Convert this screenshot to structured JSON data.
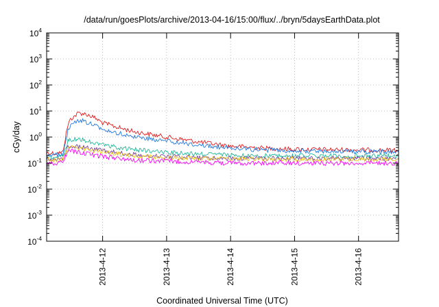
{
  "chart_data": {
    "type": "line",
    "title": "/data/run/goesPlots/archive/2013-04-16/15:00/flux/../bryn/5daysEarthData.plot",
    "xlabel": "Coordinated Universal Time (UTC)",
    "ylabel": "cGy/day",
    "yscale": "log",
    "ylim": [
      0.0001,
      10000
    ],
    "y_ticks": [
      {
        "base": "10",
        "exp": "-4",
        "value": 0.0001
      },
      {
        "base": "10",
        "exp": "-3",
        "value": 0.001
      },
      {
        "base": "10",
        "exp": "-2",
        "value": 0.01
      },
      {
        "base": "10",
        "exp": "-1",
        "value": 0.1
      },
      {
        "base": "10",
        "exp": "0",
        "value": 1
      },
      {
        "base": "10",
        "exp": "1",
        "value": 10
      },
      {
        "base": "10",
        "exp": "2",
        "value": 100
      },
      {
        "base": "10",
        "exp": "3",
        "value": 1000
      },
      {
        "base": "10",
        "exp": "4",
        "value": 10000
      }
    ],
    "xlim": [
      "2013-04-11T03:00",
      "2013-04-16T15:00"
    ],
    "x_ticks": [
      {
        "label": "2013-4-12",
        "date": "2013-04-12T00:00"
      },
      {
        "label": "2013-4-13",
        "date": "2013-04-13T00:00"
      },
      {
        "label": "2013-4-14",
        "date": "2013-04-14T00:00"
      },
      {
        "label": "2013-4-15",
        "date": "2013-04-15T00:00"
      },
      {
        "label": "2013-4-16",
        "date": "2013-04-16T00:00"
      }
    ],
    "grid": true,
    "legend": "none",
    "series": [
      {
        "color": "#e41a1c",
        "x": [
          "2013-04-11T03:00",
          "2013-04-11T06:00",
          "2013-04-11T09:00",
          "2013-04-11T10:00",
          "2013-04-11T11:00",
          "2013-04-11T12:00",
          "2013-04-11T14:00",
          "2013-04-11T15:00",
          "2013-04-11T18:00",
          "2013-04-11T21:00",
          "2013-04-12T00:00",
          "2013-04-12T06:00",
          "2013-04-12T12:00",
          "2013-04-13T00:00",
          "2013-04-13T12:00",
          "2013-04-14T00:00",
          "2013-04-14T12:00",
          "2013-04-15T00:00",
          "2013-04-15T12:00",
          "2013-04-16T00:00",
          "2013-04-16T15:00"
        ],
        "y": [
          0.25,
          0.24,
          0.25,
          0.9,
          3.0,
          5.0,
          7.0,
          8.5,
          7.5,
          5.5,
          3.5,
          2.3,
          1.6,
          1.0,
          0.65,
          0.45,
          0.38,
          0.34,
          0.33,
          0.32,
          0.31
        ]
      },
      {
        "color": "#1f78e0",
        "x": [
          "2013-04-11T03:00",
          "2013-04-11T06:00",
          "2013-04-11T09:00",
          "2013-04-11T10:00",
          "2013-04-11T11:00",
          "2013-04-11T12:00",
          "2013-04-11T14:00",
          "2013-04-11T15:00",
          "2013-04-11T18:00",
          "2013-04-11T21:00",
          "2013-04-12T00:00",
          "2013-04-12T06:00",
          "2013-04-12T12:00",
          "2013-04-13T00:00",
          "2013-04-13T12:00",
          "2013-04-14T00:00",
          "2013-04-14T12:00",
          "2013-04-15T00:00",
          "2013-04-15T12:00",
          "2013-04-16T00:00",
          "2013-04-16T15:00"
        ],
        "y": [
          0.2,
          0.2,
          0.21,
          0.6,
          1.8,
          3.0,
          4.2,
          4.5,
          3.8,
          3.0,
          2.0,
          1.4,
          1.05,
          0.7,
          0.5,
          0.38,
          0.32,
          0.3,
          0.29,
          0.28,
          0.27
        ]
      },
      {
        "color": "#1fb89a",
        "x": [
          "2013-04-11T03:00",
          "2013-04-11T06:00",
          "2013-04-11T09:00",
          "2013-04-11T10:00",
          "2013-04-11T11:00",
          "2013-04-11T12:00",
          "2013-04-11T14:00",
          "2013-04-11T15:00",
          "2013-04-11T18:00",
          "2013-04-11T21:00",
          "2013-04-12T00:00",
          "2013-04-12T06:00",
          "2013-04-12T12:00",
          "2013-04-13T00:00",
          "2013-04-13T12:00",
          "2013-04-14T00:00",
          "2013-04-14T12:00",
          "2013-04-15T00:00",
          "2013-04-15T12:00",
          "2013-04-16T00:00",
          "2013-04-16T15:00"
        ],
        "y": [
          0.17,
          0.16,
          0.17,
          0.35,
          0.7,
          0.8,
          0.85,
          0.8,
          0.7,
          0.6,
          0.5,
          0.4,
          0.33,
          0.26,
          0.22,
          0.2,
          0.19,
          0.19,
          0.19,
          0.19,
          0.19
        ]
      },
      {
        "color": "#7b3f9e",
        "x": [
          "2013-04-11T03:00",
          "2013-04-11T06:00",
          "2013-04-11T09:00",
          "2013-04-11T10:00",
          "2013-04-11T11:00",
          "2013-04-11T12:00",
          "2013-04-11T14:00",
          "2013-04-11T15:00",
          "2013-04-11T18:00",
          "2013-04-11T21:00",
          "2013-04-12T00:00",
          "2013-04-12T06:00",
          "2013-04-12T12:00",
          "2013-04-13T00:00",
          "2013-04-13T12:00",
          "2013-04-14T00:00",
          "2013-04-14T12:00",
          "2013-04-15T00:00",
          "2013-04-15T12:00",
          "2013-04-16T00:00",
          "2013-04-16T15:00"
        ],
        "y": [
          0.15,
          0.14,
          0.15,
          0.25,
          0.42,
          0.45,
          0.45,
          0.42,
          0.38,
          0.34,
          0.3,
          0.25,
          0.21,
          0.18,
          0.16,
          0.15,
          0.15,
          0.15,
          0.15,
          0.15,
          0.15
        ]
      },
      {
        "color": "#e8c21a",
        "x": [
          "2013-04-11T03:00",
          "2013-04-11T06:00",
          "2013-04-11T09:00",
          "2013-04-11T10:00",
          "2013-04-11T11:00",
          "2013-04-11T12:00",
          "2013-04-11T14:00",
          "2013-04-11T15:00",
          "2013-04-11T18:00",
          "2013-04-11T21:00",
          "2013-04-12T00:00",
          "2013-04-12T06:00",
          "2013-04-12T12:00",
          "2013-04-13T00:00",
          "2013-04-13T12:00",
          "2013-04-14T00:00",
          "2013-04-14T12:00",
          "2013-04-15T00:00",
          "2013-04-15T12:00",
          "2013-04-16T00:00",
          "2013-04-16T15:00"
        ],
        "y": [
          0.14,
          0.13,
          0.14,
          0.22,
          0.36,
          0.4,
          0.4,
          0.37,
          0.33,
          0.3,
          0.27,
          0.22,
          0.19,
          0.16,
          0.15,
          0.14,
          0.14,
          0.14,
          0.14,
          0.14,
          0.14
        ]
      },
      {
        "color": "#ff00ff",
        "x": [
          "2013-04-11T03:00",
          "2013-04-11T06:00",
          "2013-04-11T09:00",
          "2013-04-11T10:00",
          "2013-04-11T11:00",
          "2013-04-11T12:00",
          "2013-04-11T14:00",
          "2013-04-11T15:00",
          "2013-04-11T18:00",
          "2013-04-11T21:00",
          "2013-04-12T00:00",
          "2013-04-12T06:00",
          "2013-04-12T12:00",
          "2013-04-13T00:00",
          "2013-04-13T12:00",
          "2013-04-14T00:00",
          "2013-04-14T12:00",
          "2013-04-15T00:00",
          "2013-04-15T12:00",
          "2013-04-16T00:00",
          "2013-04-16T15:00"
        ],
        "y": [
          0.1,
          0.1,
          0.11,
          0.18,
          0.28,
          0.3,
          0.28,
          0.26,
          0.23,
          0.2,
          0.18,
          0.15,
          0.13,
          0.12,
          0.11,
          0.1,
          0.1,
          0.1,
          0.1,
          0.1,
          0.1
        ]
      }
    ]
  }
}
